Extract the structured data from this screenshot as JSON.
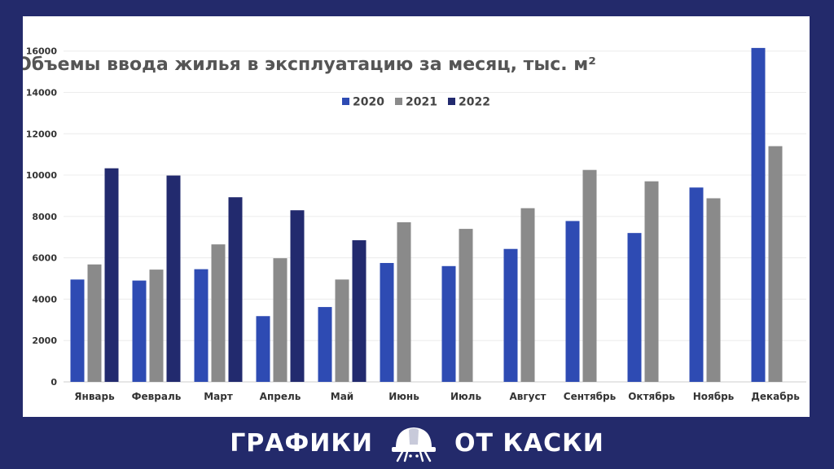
{
  "chart_data": {
    "type": "bar",
    "title": "Объемы ввода жилья в эксплуатацию за месяц, тыс. м²",
    "categories": [
      "Январь",
      "Февраль",
      "Март",
      "Апрель",
      "Май",
      "Июнь",
      "Июль",
      "Август",
      "Сентябрь",
      "Октябрь",
      "Ноябрь",
      "Декабрь"
    ],
    "series": [
      {
        "name": "2020",
        "color": "#2e4bb3",
        "values": [
          4950,
          4900,
          5450,
          3180,
          3620,
          5750,
          5600,
          6430,
          7780,
          7200,
          9400,
          16150
        ]
      },
      {
        "name": "2021",
        "color": "#8a8a8a",
        "values": [
          5680,
          5430,
          6650,
          5980,
          4950,
          7720,
          7400,
          8400,
          10250,
          9700,
          8880,
          11400
        ]
      },
      {
        "name": "2022",
        "color": "#222a6e",
        "values": [
          10330,
          9980,
          8930,
          8300,
          6850,
          null,
          null,
          null,
          null,
          null,
          null,
          null
        ]
      }
    ],
    "yticks": [
      "0",
      "2000",
      "4000",
      "6000",
      "8000",
      "10000",
      "12000",
      "14000",
      "16000"
    ],
    "ylim": [
      0,
      16500
    ],
    "grid": true,
    "legend_position": "top-center"
  },
  "footer": {
    "left_text": "ГРАФИКИ",
    "right_text": "ОТ КАСКИ",
    "logo_icon": "hard-hat-icon"
  }
}
